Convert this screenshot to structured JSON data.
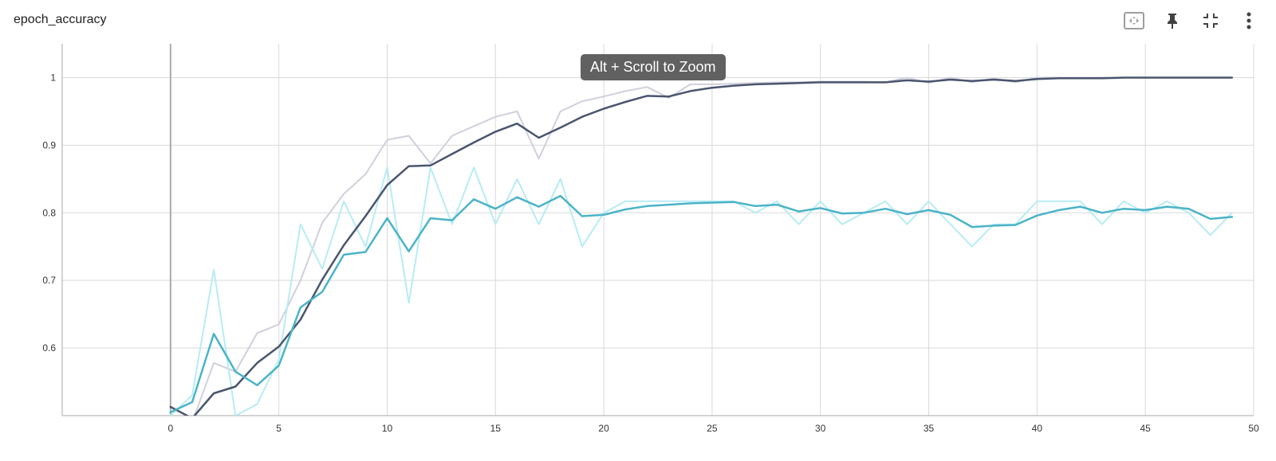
{
  "panel": {
    "title": "epoch_accuracy",
    "tooltip": "Alt + Scroll to Zoom",
    "toolbar": {
      "fit_icon": "fit-domain-icon",
      "pin_icon": "pin-icon",
      "collapse_icon": "collapse-icon",
      "menu_icon": "more-vert-icon"
    }
  },
  "colors": {
    "train": "#4a556e",
    "train_raw": "#cfd0dc",
    "val": "#4bb3c7",
    "val_raw": "#b7ecf4",
    "grid": "#d9d9d9",
    "axis": "#aaaaaa"
  },
  "chart_data": {
    "type": "line",
    "xlim": [
      -5,
      50
    ],
    "ylim": [
      0.5,
      1.05
    ],
    "x_ticks": [
      0,
      5,
      10,
      15,
      20,
      25,
      30,
      35,
      40,
      45,
      50
    ],
    "y_ticks": [
      0.6,
      0.7,
      0.8,
      0.9,
      1
    ],
    "x_tick_labels": [
      "0",
      "5",
      "10",
      "15",
      "20",
      "25",
      "30",
      "35",
      "40",
      "45",
      "50"
    ],
    "y_tick_labels": [
      "0.6",
      "0.7",
      "0.8",
      "0.9",
      "1"
    ],
    "grid": true,
    "x": [
      0,
      1,
      2,
      3,
      4,
      5,
      6,
      7,
      8,
      9,
      10,
      11,
      12,
      13,
      14,
      15,
      16,
      17,
      18,
      19,
      20,
      21,
      22,
      23,
      24,
      25,
      26,
      27,
      28,
      29,
      30,
      31,
      32,
      33,
      34,
      35,
      36,
      37,
      38,
      39,
      40,
      41,
      42,
      43,
      44,
      45,
      46,
      47,
      48,
      49
    ],
    "series": [
      {
        "key": "train_raw",
        "values": [
          0.5,
          0.49,
          0.578,
          0.565,
          0.622,
          0.635,
          0.7,
          0.785,
          0.828,
          0.857,
          0.908,
          0.914,
          0.873,
          0.914,
          0.928,
          0.942,
          0.95,
          0.88,
          0.95,
          0.965,
          0.972,
          0.98,
          0.986,
          0.97,
          0.99,
          0.99,
          0.991,
          0.992,
          0.993,
          0.993,
          0.994,
          0.994,
          0.994,
          0.993,
          1.0,
          0.992,
          1.0,
          0.993,
          0.999,
          0.993,
          1.0,
          1.0,
          1.0,
          1.0,
          1.0,
          1.0,
          1.0,
          1.0,
          1.0,
          1.0
        ]
      },
      {
        "key": "val_raw",
        "values": [
          0.5,
          0.53,
          0.716,
          0.5,
          0.517,
          0.583,
          0.783,
          0.717,
          0.817,
          0.75,
          0.867,
          0.667,
          0.867,
          0.783,
          0.867,
          0.783,
          0.85,
          0.783,
          0.85,
          0.75,
          0.8,
          0.817,
          0.817,
          0.817,
          0.817,
          0.817,
          0.817,
          0.8,
          0.817,
          0.783,
          0.817,
          0.783,
          0.8,
          0.817,
          0.783,
          0.817,
          0.783,
          0.75,
          0.783,
          0.783,
          0.817,
          0.817,
          0.817,
          0.783,
          0.817,
          0.8,
          0.817,
          0.8,
          0.767,
          0.8
        ]
      },
      {
        "key": "train",
        "values": [
          0.513,
          0.496,
          0.533,
          0.543,
          0.578,
          0.602,
          0.642,
          0.701,
          0.752,
          0.795,
          0.841,
          0.869,
          0.87,
          0.887,
          0.904,
          0.92,
          0.932,
          0.911,
          0.926,
          0.942,
          0.954,
          0.964,
          0.973,
          0.972,
          0.98,
          0.985,
          0.988,
          0.99,
          0.991,
          0.992,
          0.993,
          0.993,
          0.993,
          0.993,
          0.996,
          0.994,
          0.997,
          0.995,
          0.997,
          0.995,
          0.998,
          0.999,
          0.999,
          0.999,
          1.0,
          1.0,
          1.0,
          1.0,
          1.0,
          1.0
        ]
      },
      {
        "key": "val",
        "values": [
          0.505,
          0.52,
          0.621,
          0.565,
          0.545,
          0.574,
          0.66,
          0.683,
          0.738,
          0.742,
          0.792,
          0.743,
          0.792,
          0.789,
          0.82,
          0.806,
          0.823,
          0.809,
          0.825,
          0.795,
          0.797,
          0.805,
          0.81,
          0.812,
          0.814,
          0.815,
          0.816,
          0.81,
          0.812,
          0.802,
          0.807,
          0.799,
          0.8,
          0.806,
          0.798,
          0.804,
          0.797,
          0.779,
          0.781,
          0.782,
          0.796,
          0.804,
          0.809,
          0.8,
          0.806,
          0.804,
          0.809,
          0.806,
          0.791,
          0.794
        ]
      }
    ]
  }
}
